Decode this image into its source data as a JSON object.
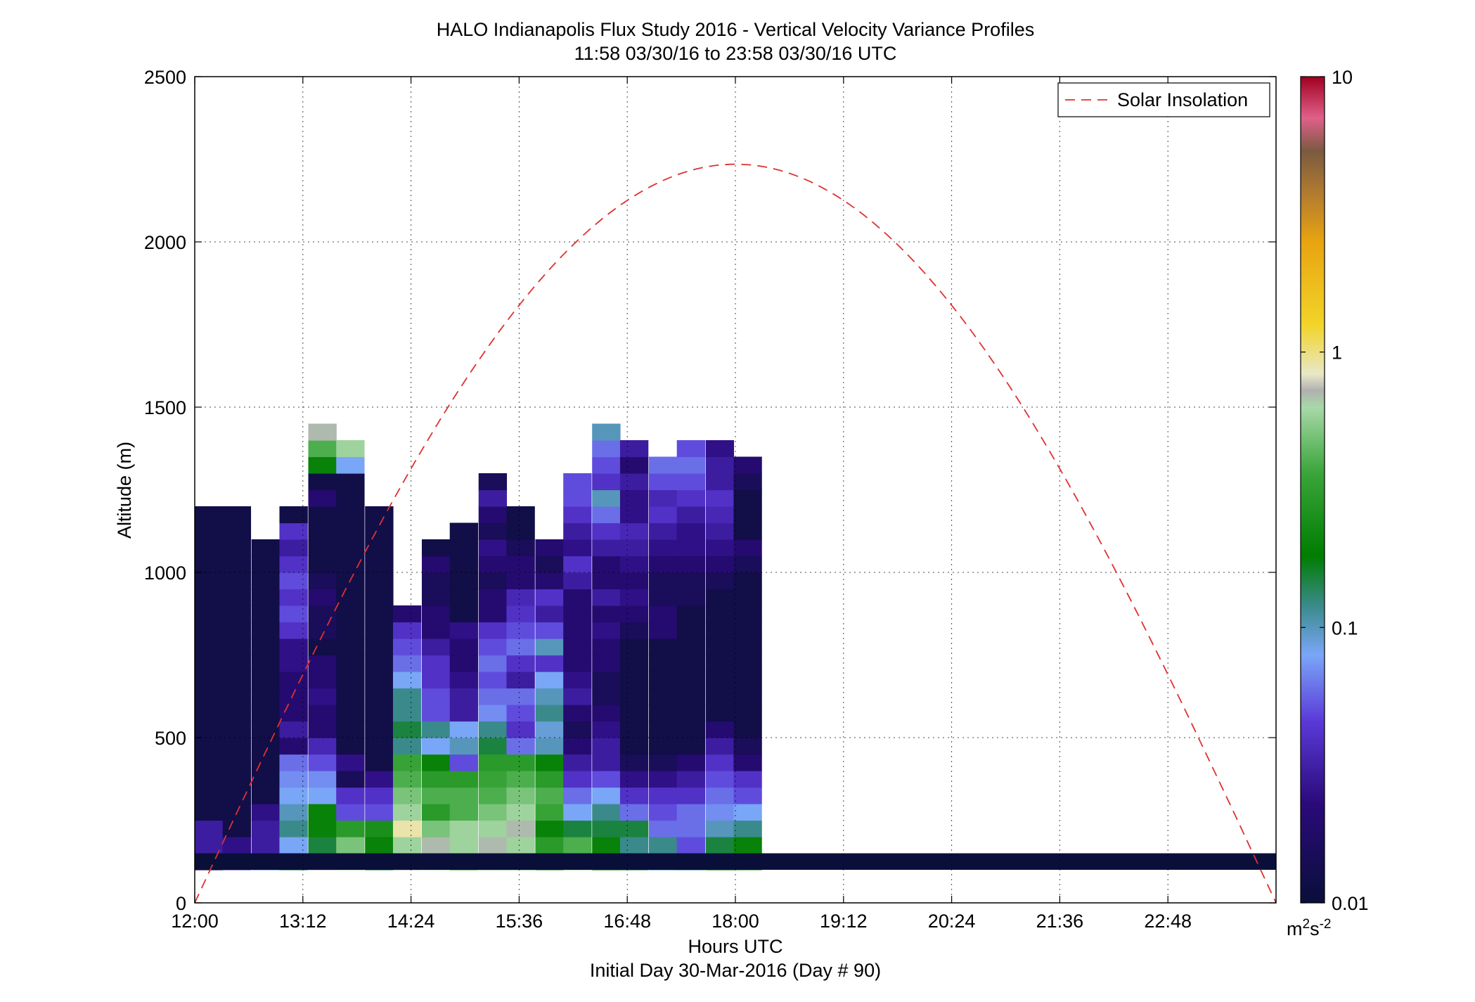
{
  "chart_data": {
    "type": "heatmap",
    "title": "HALO Indianapolis Flux Study 2016 - Vertical Velocity Variance Profiles",
    "subtitle": "11:58 03/30/16 to 23:58 03/30/16  UTC",
    "xlabel": "Hours UTC",
    "xlabel2": "Initial Day 30-Mar-2016 (Day # 90)",
    "ylabel": "Altitude (m)",
    "x_tick_labels": [
      "12:00",
      "13:12",
      "14:24",
      "15:36",
      "16:48",
      "18:00",
      "19:12",
      "20:24",
      "21:36",
      "22:48"
    ],
    "x_ticks_hours": [
      12.0,
      13.2,
      14.4,
      15.6,
      16.8,
      18.0,
      19.2,
      20.4,
      21.6,
      22.8
    ],
    "xlim_hours": [
      12.0,
      24.0
    ],
    "y_tick_labels": [
      "0",
      "500",
      "1000",
      "1500",
      "2000",
      "2500"
    ],
    "y_ticks": [
      0,
      500,
      1000,
      1500,
      2000,
      2500
    ],
    "ylim": [
      0,
      2500
    ],
    "grid": true,
    "colorbar": {
      "scale": "log",
      "range": [
        0.01,
        10
      ],
      "tick_labels": [
        "10",
        "1",
        "0.1",
        "0.01"
      ],
      "tick_values": [
        10,
        1,
        0.1,
        0.01
      ],
      "unit_base": "m",
      "unit_sup1": "2",
      "unit_mid": "s",
      "unit_sup2": "-2"
    },
    "legend": {
      "placement": "top-right",
      "entries": [
        "Solar Insolation"
      ]
    },
    "solar_insolation": {
      "peak_hour": 18.0,
      "peak_altitude": 2235,
      "start_hour": 12.0,
      "end_hour": 24.0,
      "color": "#e03030"
    },
    "cell_width_hours": 0.31,
    "cell_height_m": 50,
    "profiles_low_m": [
      {
        "hour": 12.0,
        "values": [
          0.012,
          0.03,
          0.03,
          0.012,
          0.012,
          0.012,
          0.012,
          0.012,
          0.012,
          0.012,
          0.012,
          0.012,
          0.012,
          0.012,
          0.012,
          0.012,
          0.012,
          0.012,
          0.012,
          0.012,
          0.012,
          0.012
        ]
      },
      {
        "hour": 12.31,
        "values": [
          0.05,
          0.025,
          0.012,
          0.012,
          0.012,
          0.012,
          0.012,
          0.012,
          0.012,
          0.012,
          0.012,
          0.012,
          0.012,
          0.012,
          0.012,
          0.012,
          0.012,
          0.012,
          0.012,
          0.012,
          0.012,
          0.012
        ]
      },
      {
        "hour": 12.63,
        "values": [
          0.09,
          0.03,
          0.03,
          0.025,
          0.012,
          0.012,
          0.012,
          0.012,
          0.012,
          0.012,
          0.012,
          0.012,
          0.012,
          0.012,
          0.012,
          0.012,
          0.012,
          0.012,
          0.012,
          0.012
        ]
      },
      {
        "hour": 12.94,
        "values": [
          0.15,
          0.08,
          0.12,
          0.1,
          0.08,
          0.07,
          0.06,
          0.02,
          0.03,
          0.02,
          0.02,
          0.02,
          0.025,
          0.025,
          0.04,
          0.05,
          0.04,
          0.05,
          0.04,
          0.03,
          0.04,
          0.012
        ]
      },
      {
        "hour": 13.26,
        "values": [
          0.7,
          0.15,
          0.2,
          0.2,
          0.08,
          0.07,
          0.05,
          0.035,
          0.02,
          0.02,
          0.025,
          0.02,
          0.02,
          0.012,
          0.015,
          0.015,
          0.02,
          0.015,
          0.012,
          0.012,
          0.012,
          0.012,
          0.02,
          0.012,
          0.2,
          0.4,
          0.7
        ]
      },
      {
        "hour": 13.57,
        "values": [
          0.6,
          0.5,
          0.3,
          0.05,
          0.04,
          0.015,
          0.025,
          0.012,
          0.012,
          0.012,
          0.012,
          0.012,
          0.012,
          0.012,
          0.012,
          0.012,
          0.012,
          0.012,
          0.012,
          0.012,
          0.012,
          0.012,
          0.012,
          0.012,
          0.08,
          0.6
        ]
      },
      {
        "hour": 13.89,
        "values": [
          0.15,
          0.2,
          0.25,
          0.05,
          0.04,
          0.025,
          0.012,
          0.012,
          0.012,
          0.012,
          0.012,
          0.012,
          0.012,
          0.012,
          0.012,
          0.012,
          0.012,
          0.012,
          0.012,
          0.012,
          0.012,
          0.012
        ]
      },
      {
        "hour": 14.2,
        "values": [
          0.7,
          0.6,
          0.9,
          0.6,
          0.5,
          0.4,
          0.35,
          0.12,
          0.15,
          0.12,
          0.12,
          0.08,
          0.06,
          0.05,
          0.04,
          0.02
        ]
      },
      {
        "hour": 14.52,
        "values": [
          0.6,
          0.7,
          0.5,
          0.3,
          0.4,
          0.3,
          0.2,
          0.08,
          0.12,
          0.05,
          0.05,
          0.04,
          0.04,
          0.03,
          0.02,
          0.02,
          0.015,
          0.015,
          0.02,
          0.012
        ]
      },
      {
        "hour": 14.83,
        "values": [
          0.35,
          0.6,
          0.6,
          0.4,
          0.4,
          0.3,
          0.05,
          0.1,
          0.08,
          0.03,
          0.03,
          0.025,
          0.02,
          0.02,
          0.025,
          0.012,
          0.012,
          0.012,
          0.012,
          0.012,
          0.012
        ]
      },
      {
        "hour": 15.15,
        "values": [
          0.5,
          0.7,
          0.6,
          0.5,
          0.4,
          0.35,
          0.3,
          0.15,
          0.12,
          0.07,
          0.06,
          0.05,
          0.06,
          0.05,
          0.04,
          0.02,
          0.02,
          0.015,
          0.02,
          0.025,
          0.015,
          0.02,
          0.03,
          0.015
        ]
      },
      {
        "hour": 15.46,
        "values": [
          0.5,
          0.6,
          0.7,
          0.6,
          0.5,
          0.4,
          0.3,
          0.06,
          0.04,
          0.05,
          0.06,
          0.03,
          0.04,
          0.06,
          0.05,
          0.04,
          0.035,
          0.02,
          0.02,
          0.015,
          0.012,
          0.012
        ]
      },
      {
        "hour": 15.78,
        "values": [
          0.25,
          0.3,
          0.2,
          0.35,
          0.4,
          0.3,
          0.2,
          0.1,
          0.09,
          0.12,
          0.1,
          0.08,
          0.04,
          0.1,
          0.05,
          0.03,
          0.04,
          0.02,
          0.015,
          0.02
        ]
      },
      {
        "hour": 16.09,
        "values": [
          0.6,
          0.4,
          0.15,
          0.08,
          0.06,
          0.04,
          0.03,
          0.02,
          0.015,
          0.02,
          0.03,
          0.025,
          0.02,
          0.02,
          0.02,
          0.02,
          0.02,
          0.03,
          0.04,
          0.025,
          0.03,
          0.04,
          0.05,
          0.05
        ]
      },
      {
        "hour": 16.41,
        "values": [
          0.2,
          0.2,
          0.15,
          0.12,
          0.08,
          0.05,
          0.03,
          0.03,
          0.025,
          0.02,
          0.015,
          0.015,
          0.02,
          0.02,
          0.025,
          0.02,
          0.03,
          0.02,
          0.02,
          0.03,
          0.04,
          0.06,
          0.1,
          0.04,
          0.05,
          0.06,
          0.1
        ]
      },
      {
        "hour": 16.72,
        "values": [
          0.15,
          0.12,
          0.15,
          0.06,
          0.04,
          0.025,
          0.015,
          0.012,
          0.012,
          0.012,
          0.012,
          0.012,
          0.012,
          0.012,
          0.015,
          0.02,
          0.025,
          0.02,
          0.025,
          0.03,
          0.035,
          0.025,
          0.025,
          0.03,
          0.02,
          0.03
        ]
      },
      {
        "hour": 17.04,
        "values": [
          0.1,
          0.12,
          0.06,
          0.05,
          0.04,
          0.025,
          0.015,
          0.012,
          0.012,
          0.012,
          0.012,
          0.012,
          0.012,
          0.012,
          0.02,
          0.02,
          0.015,
          0.015,
          0.02,
          0.025,
          0.03,
          0.04,
          0.035,
          0.05,
          0.06
        ]
      },
      {
        "hour": 17.35,
        "values": [
          0.12,
          0.05,
          0.06,
          0.06,
          0.04,
          0.03,
          0.02,
          0.012,
          0.012,
          0.012,
          0.012,
          0.012,
          0.012,
          0.012,
          0.012,
          0.012,
          0.015,
          0.015,
          0.02,
          0.025,
          0.025,
          0.03,
          0.04,
          0.05,
          0.06,
          0.05
        ]
      },
      {
        "hour": 17.67,
        "values": [
          0.2,
          0.15,
          0.1,
          0.07,
          0.06,
          0.05,
          0.04,
          0.03,
          0.02,
          0.012,
          0.012,
          0.012,
          0.012,
          0.012,
          0.012,
          0.012,
          0.012,
          0.015,
          0.02,
          0.025,
          0.03,
          0.035,
          0.04,
          0.03,
          0.03,
          0.025
        ]
      },
      {
        "hour": 17.98,
        "values": [
          0.3,
          0.2,
          0.12,
          0.08,
          0.05,
          0.04,
          0.02,
          0.015,
          0.012,
          0.012,
          0.012,
          0.012,
          0.012,
          0.012,
          0.012,
          0.012,
          0.012,
          0.012,
          0.015,
          0.02,
          0.012,
          0.012,
          0.012,
          0.015,
          0.02
        ]
      }
    ]
  }
}
